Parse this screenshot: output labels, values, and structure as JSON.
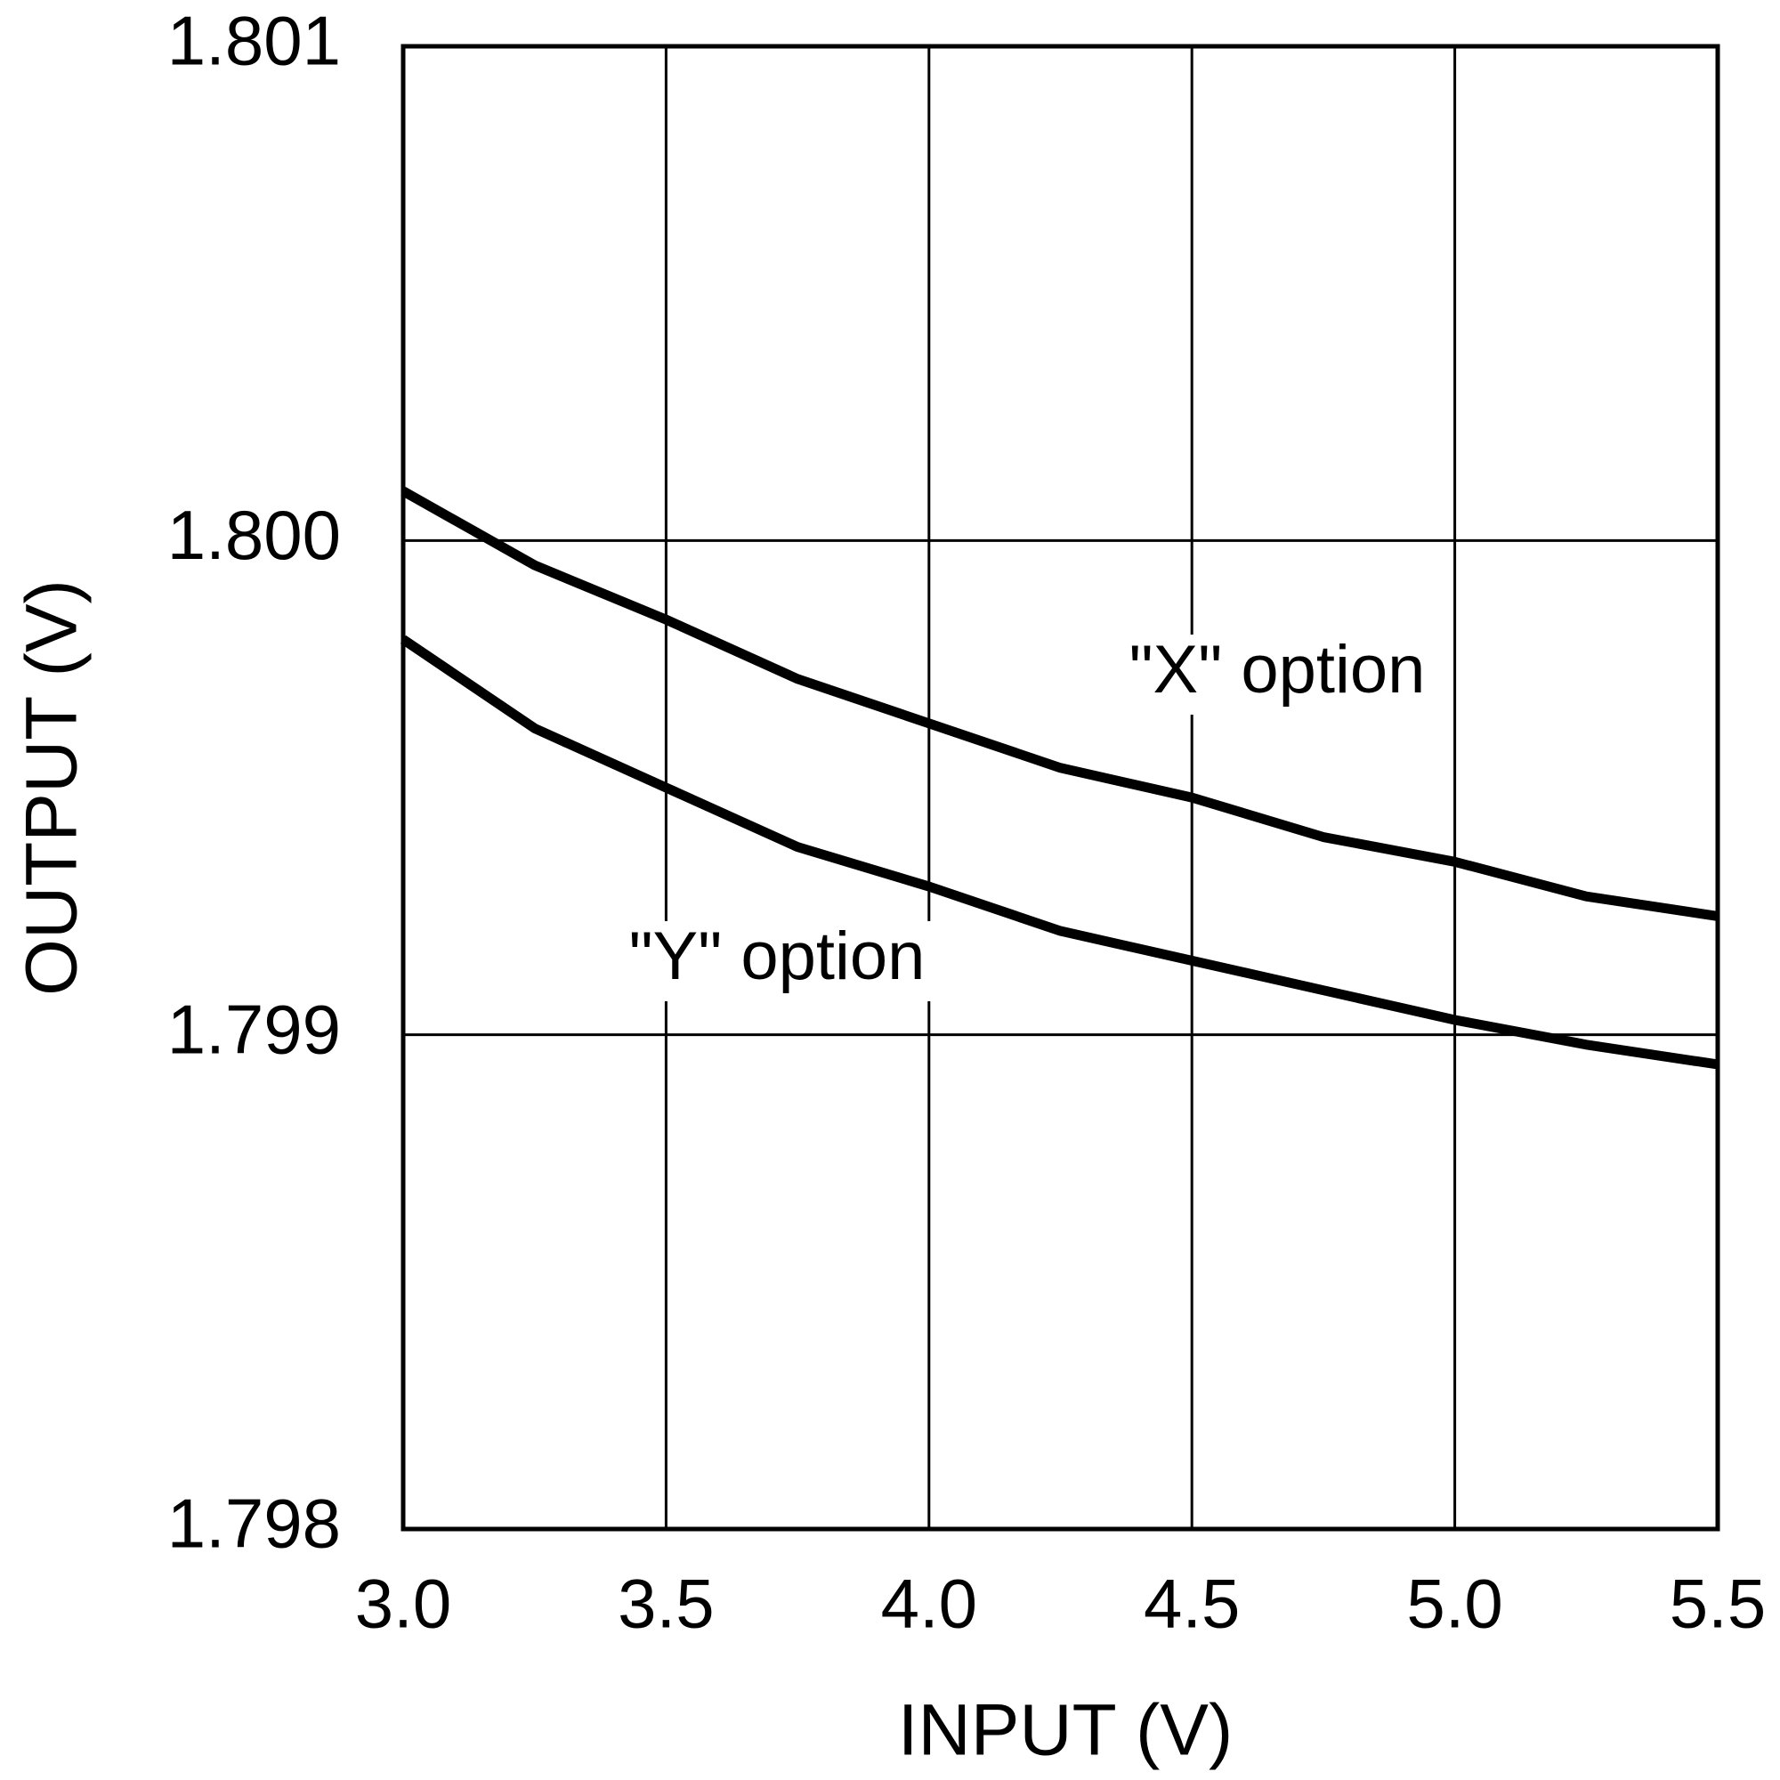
{
  "chart_data": {
    "type": "line",
    "x_label": "INPUT (V)",
    "y_label": "OUTPUT (V)",
    "x": [
      3.0,
      3.25,
      3.5,
      3.75,
      4.0,
      4.25,
      4.5,
      4.75,
      5.0,
      5.25,
      5.5
    ],
    "series": [
      {
        "name": "\"X\" option",
        "color": "#000000",
        "values": [
          1.8001,
          1.79995,
          1.79984,
          1.79972,
          1.79963,
          1.79954,
          1.79948,
          1.7994,
          1.79935,
          1.79928,
          1.79924
        ]
      },
      {
        "name": "\"Y\" option",
        "color": "#000000",
        "values": [
          1.7998,
          1.79962,
          1.7995,
          1.79938,
          1.7993,
          1.79921,
          1.79915,
          1.79909,
          1.79903,
          1.79898,
          1.79894
        ]
      }
    ],
    "xlim": [
      3,
      5.5
    ],
    "xticks": [
      {
        "value": 3,
        "label": "3.0"
      },
      3.5,
      {
        "value": 4,
        "label": "4.0"
      },
      4.5,
      {
        "value": 5,
        "label": "5.0"
      },
      5.5
    ],
    "ylim": [
      1.798,
      1.801
    ],
    "yticks": [
      1.798,
      1.799,
      {
        "value": 1.8,
        "label": "1.800"
      },
      1.801
    ],
    "grid": true
  }
}
